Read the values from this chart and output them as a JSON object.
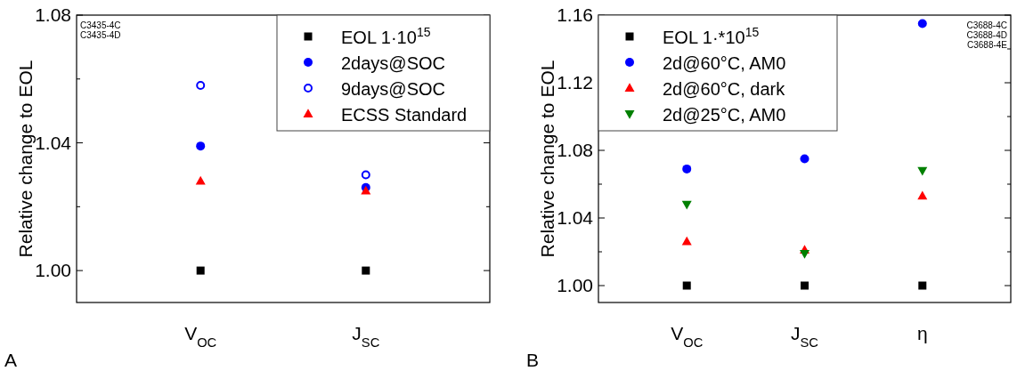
{
  "chart_data": [
    {
      "type": "scatter",
      "ylabel": "Relative change to EOL",
      "categories": [
        "V$_{OC}$",
        "J$_{SC}$"
      ],
      "ylim": [
        0.99,
        1.08
      ],
      "yticks": [
        {
          "value": 1.0,
          "label": "1.00"
        },
        {
          "value": 1.02,
          "label": null
        },
        1.04,
        {
          "value": 1.06,
          "label": null
        },
        1.08
      ],
      "legend": "top right",
      "grid": false,
      "annotations": [
        "A",
        "C3435-4C",
        "C3435-4D"
      ],
      "series": [
        {
          "name": "EOL 1·10$^{15}$",
          "color": "#000000",
          "marker": "square",
          "values": [
            1.0,
            1.0
          ]
        },
        {
          "name": "2days@SOC",
          "color": "#0000ff",
          "marker": "circle",
          "values": [
            1.039,
            1.026
          ]
        },
        {
          "name": "9days@SOC",
          "color": "#0000ff",
          "marker": "circle-open",
          "values": [
            1.058,
            1.03
          ]
        },
        {
          "name": "ECSS Standard",
          "color": "#ff0000",
          "marker": "triangle",
          "values": [
            1.028,
            1.025
          ]
        }
      ]
    },
    {
      "type": "scatter",
      "ylabel": "Relative change to EOL",
      "categories": [
        "V$_{OC}$",
        "J$_{SC}$",
        "η"
      ],
      "ylim": [
        0.99,
        1.16
      ],
      "yticks": [
        {
          "value": 1.0,
          "label": "1.00"
        },
        {
          "value": 1.02,
          "label": null
        },
        1.04,
        {
          "value": 1.06,
          "label": null
        },
        1.08,
        {
          "value": 1.1,
          "label": null
        },
        1.12,
        {
          "value": 1.14,
          "label": null
        },
        1.16
      ],
      "legend": "top left",
      "grid": false,
      "annotations": [
        "B",
        "C3688-4C",
        "C3688-4D",
        "C3688-4E"
      ],
      "series": [
        {
          "name": "EOL 1·*10$^{15}$",
          "color": "#000000",
          "marker": "square",
          "values": [
            1.0,
            1.0,
            1.0
          ]
        },
        {
          "name": "2d@60°C, AM0",
          "color": "#0000ff",
          "marker": "circle",
          "values": [
            1.069,
            1.075,
            1.155
          ]
        },
        {
          "name": "2d@60°C, dark",
          "color": "#ff0000",
          "marker": "triangle",
          "values": [
            1.026,
            1.021,
            1.053
          ]
        },
        {
          "name": "2d@25°C, AM0",
          "color": "#008000",
          "marker": "triangle-down",
          "values": [
            1.048,
            1.019,
            1.068
          ]
        }
      ]
    }
  ]
}
